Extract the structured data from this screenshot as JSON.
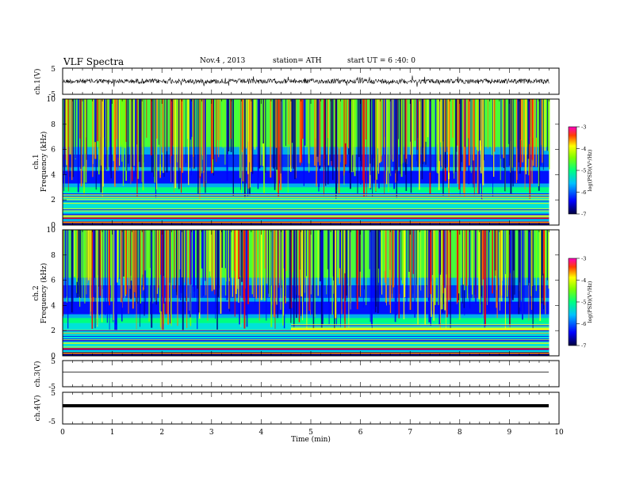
{
  "header": {
    "title": "VLF Spectra",
    "date": "Nov.4 , 2013",
    "station": "station= ATH",
    "start": "start UT = 6 :40: 0"
  },
  "chart_data": [
    {
      "type": "line",
      "name": "ch.1",
      "ylabel": "ch.1(V)",
      "ylim": [
        -5,
        5
      ],
      "ytick_labels": [
        "5",
        "-5"
      ],
      "trace": "dense noisy waveform around 0 V"
    },
    {
      "type": "heatmap",
      "name": "ch.1 spectrogram",
      "ylabel_channel": "ch.1",
      "ylabel": "Frequency (kHz)",
      "ylim": [
        0,
        10
      ],
      "ytick_labels": [
        "0",
        "2",
        "4",
        "6",
        "8",
        "10"
      ],
      "colorbar": {
        "label": "log(PSD)(V²/Hz)",
        "range": [
          -7,
          -3
        ],
        "tick_labels": [
          "-3",
          "-4",
          "-5",
          "-6",
          "-7"
        ]
      }
    },
    {
      "type": "heatmap",
      "name": "ch.2 spectrogram",
      "ylabel_channel": "ch.2",
      "ylabel": "Frequency (kHz)",
      "ylim": [
        0,
        10
      ],
      "ytick_labels": [
        "0",
        "2",
        "4",
        "6",
        "8",
        "10"
      ],
      "colorbar": {
        "label": "log(PSD)(V²/Hz)",
        "range": [
          -7,
          -3
        ],
        "tick_labels": [
          "-3",
          "-4",
          "-5",
          "-6",
          "-7"
        ]
      }
    },
    {
      "type": "line",
      "name": "ch.3",
      "ylabel": "ch.3(V)",
      "ylim": [
        -5,
        5
      ],
      "ytick_labels": [
        "5",
        "-5"
      ],
      "trace": "flat line slightly below 0 V"
    },
    {
      "type": "line",
      "name": "ch.4",
      "ylabel": "ch.4(V)",
      "ylim": [
        -5,
        5
      ],
      "ytick_labels": [
        "5",
        "-5"
      ],
      "trace": "thick flat line slightly below 0 V"
    }
  ],
  "xaxis": {
    "xlabel": "Time (min)",
    "xlim": [
      0,
      10
    ],
    "tick_labels": [
      "0",
      "1",
      "2",
      "3",
      "4",
      "5",
      "6",
      "7",
      "8",
      "9",
      "10"
    ],
    "data_end": 9.8
  },
  "colors": [
    "#000080",
    "#0000ff",
    "#00a0ff",
    "#00e0e0",
    "#00ff80",
    "#80ff00",
    "#ffff00",
    "#ff8000",
    "#ff0000",
    "#c00000"
  ]
}
